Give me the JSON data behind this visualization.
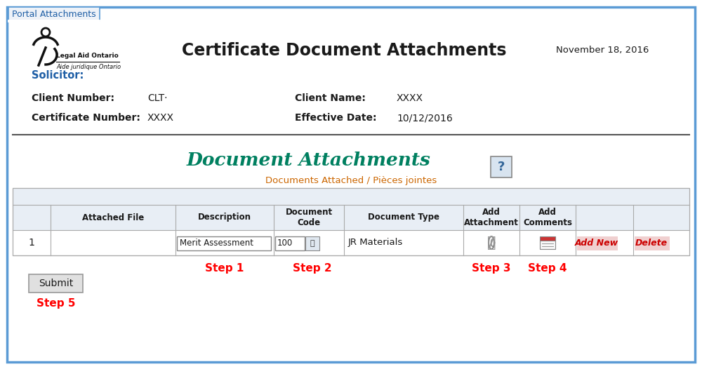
{
  "bg_color": "#ffffff",
  "outer_border_color": "#5b9bd5",
  "outer_border_lw": 2.5,
  "tab_text": "Portal Attachments",
  "tab_bg": "#eef2f8",
  "tab_border": "#5b9bd5",
  "tab_text_color": "#1f5fa6",
  "title": "Certificate Document Attachments",
  "date": "November 18, 2016",
  "solicitor_label": "Solicitor:",
  "client_number_label": "Client Number:",
  "client_number_value": "CLT·",
  "client_name_label": "Client Name:",
  "client_name_value": "XXXX",
  "cert_number_label": "Certificate Number:",
  "cert_number_value": "XXXX",
  "eff_date_label": "Effective Date:",
  "eff_date_value": "10/12/2016",
  "doc_attach_title": "Document Attachments",
  "doc_attach_subtitle": "Documents Attached / Pièces jointes",
  "table_header_bg": "#e8eef5",
  "table_subheader_bg": "#f5f5f5",
  "table_row_bg": "#ffffff",
  "col_headers": [
    "Attached File",
    "Description",
    "Document\nCode",
    "Document Type",
    "Add\nAttachment",
    "Add\nComments",
    "",
    ""
  ],
  "row_num": "1",
  "desc_value": "Merit Assessment",
  "doc_code_value": "100",
  "doc_type_value": "JR Materials",
  "add_new_label": "Add New",
  "delete_label": "Delete",
  "step1_label": "Step 1",
  "step2_label": "Step 2",
  "step3_label": "Step 3",
  "step4_label": "Step 4",
  "step5_label": "Step 5",
  "submit_label": "Submit",
  "step_color": "#ff0000",
  "teal_color": "#008060",
  "orange_color": "#cc6600",
  "blue_label_color": "#1f5fa6",
  "dark_text": "#1a1a1a",
  "gray_text": "#555555",
  "red_link": "#cc0000",
  "red_link_bg": "#f0c0c0",
  "solicitor_color": "#1f5fa6",
  "logo_color": "#111111",
  "header_col_color": "#1f4e79",
  "divider_color": "#555555"
}
